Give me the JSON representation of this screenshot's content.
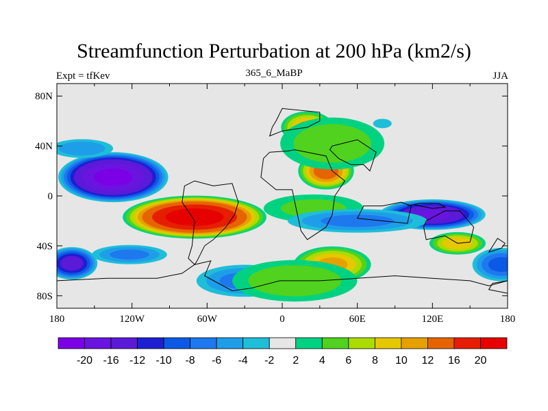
{
  "chart_data": {
    "type": "heatmap",
    "title": "Streamfunction Perturbation at 200 hPa (km2/s)",
    "left_label": "Expt = tfKev",
    "center_label": "365_6_MaBP",
    "right_label": "JJA",
    "xlim": [
      -180,
      180
    ],
    "ylim": [
      -90,
      90
    ],
    "x_ticks": [
      {
        "value": -180,
        "label": "180"
      },
      {
        "value": -120,
        "label": "120W"
      },
      {
        "value": -60,
        "label": "60W"
      },
      {
        "value": 0,
        "label": "0"
      },
      {
        "value": 60,
        "label": "60E"
      },
      {
        "value": 120,
        "label": "120E"
      },
      {
        "value": 180,
        "label": "180"
      }
    ],
    "y_ticks": [
      {
        "value": 80,
        "label": "80N"
      },
      {
        "value": 40,
        "label": "40N"
      },
      {
        "value": 0,
        "label": "0"
      },
      {
        "value": -40,
        "label": "40S"
      },
      {
        "value": -80,
        "label": "80S"
      }
    ],
    "levels": [
      -20,
      -16,
      -12,
      -10,
      -8,
      -6,
      -4,
      -2,
      2,
      4,
      6,
      8,
      10,
      12,
      16,
      20
    ],
    "colors": [
      "#7b00e6",
      "#6a14e0",
      "#5a1ad8",
      "#1e1ed2",
      "#0a5ae6",
      "#1e78ee",
      "#1e9ee8",
      "#1ebed8",
      "#e6e6e6",
      "#00d282",
      "#50d21e",
      "#aadc00",
      "#e6c800",
      "#e6a000",
      "#e66400",
      "#e61e00",
      "#e60000"
    ],
    "centers": [
      {
        "lon": -135,
        "lat": 15,
        "value": -21,
        "rx": 46,
        "ry": 21
      },
      {
        "lon": -70,
        "lat": -17,
        "value": 22,
        "rx": 60,
        "ry": 18
      },
      {
        "lon": -168,
        "lat": -54,
        "value": -13,
        "rx": 22,
        "ry": 14
      },
      {
        "lon": -160,
        "lat": 38,
        "value": -5,
        "rx": 30,
        "ry": 9
      },
      {
        "lon": -122,
        "lat": -47,
        "value": -6,
        "rx": 35,
        "ry": 9
      },
      {
        "lon": -30,
        "lat": -68,
        "value": -6,
        "rx": 45,
        "ry": 15
      },
      {
        "lon": 20,
        "lat": 55,
        "value": 10,
        "rx": 23,
        "ry": 14
      },
      {
        "lon": 35,
        "lat": 20,
        "value": 13,
        "rx": 24,
        "ry": 16
      },
      {
        "lon": 40,
        "lat": 42,
        "value": 5,
        "rx": 50,
        "ry": 25
      },
      {
        "lon": 25,
        "lat": -10,
        "value": 4,
        "rx": 50,
        "ry": 14
      },
      {
        "lon": 40,
        "lat": -55,
        "value": 10,
        "rx": 34,
        "ry": 16
      },
      {
        "lon": 10,
        "lat": -68,
        "value": 5,
        "rx": 60,
        "ry": 20
      },
      {
        "lon": 120,
        "lat": -15,
        "value": -16,
        "rx": 45,
        "ry": 13
      },
      {
        "lon": 60,
        "lat": -20,
        "value": -6,
        "rx": 65,
        "ry": 11
      },
      {
        "lon": 140,
        "lat": -38,
        "value": 9,
        "rx": 25,
        "ry": 10
      },
      {
        "lon": 175,
        "lat": -55,
        "value": -8,
        "rx": 26,
        "ry": 15
      },
      {
        "lon": 80,
        "lat": 58,
        "value": -3,
        "rx": 10,
        "ry": 5
      }
    ],
    "continents": [
      [
        [
          -180,
          -68
        ],
        [
          -140,
          -66
        ],
        [
          -100,
          -66
        ],
        [
          -80,
          -62
        ],
        [
          -70,
          -55
        ],
        [
          -57,
          -52
        ],
        [
          -62,
          -64
        ],
        [
          -40,
          -76
        ],
        [
          -25,
          -74
        ],
        [
          -2,
          -68
        ],
        [
          30,
          -68
        ],
        [
          60,
          -66
        ],
        [
          90,
          -64
        ],
        [
          120,
          -66
        ],
        [
          150,
          -68
        ],
        [
          165,
          -72
        ],
        [
          180,
          -68
        ],
        [
          180,
          -90
        ],
        [
          -180,
          -90
        ]
      ],
      [
        [
          -40,
          10
        ],
        [
          -35,
          -5
        ],
        [
          -38,
          -15
        ],
        [
          -45,
          -25
        ],
        [
          -55,
          -35
        ],
        [
          -62,
          -40
        ],
        [
          -68,
          -52
        ],
        [
          -70,
          -55
        ],
        [
          -75,
          -50
        ],
        [
          -72,
          -40
        ],
        [
          -70,
          -20
        ],
        [
          -80,
          -5
        ],
        [
          -78,
          8
        ],
        [
          -70,
          12
        ],
        [
          -55,
          8
        ]
      ],
      [
        [
          -10,
          35
        ],
        [
          5,
          36
        ],
        [
          10,
          37
        ],
        [
          35,
          32
        ],
        [
          40,
          20
        ],
        [
          50,
          12
        ],
        [
          42,
          0
        ],
        [
          40,
          -15
        ],
        [
          35,
          -25
        ],
        [
          20,
          -35
        ],
        [
          15,
          -28
        ],
        [
          10,
          -5
        ],
        [
          8,
          5
        ],
        [
          -5,
          5
        ],
        [
          -17,
          15
        ],
        [
          -15,
          30
        ]
      ],
      [
        [
          -10,
          48
        ],
        [
          0,
          52
        ],
        [
          20,
          55
        ],
        [
          30,
          60
        ],
        [
          30,
          67
        ],
        [
          0,
          70
        ],
        [
          -5,
          60
        ],
        [
          -8,
          55
        ]
      ],
      [
        [
          40,
          40
        ],
        [
          60,
          45
        ],
        [
          75,
          35
        ],
        [
          70,
          20
        ],
        [
          65,
          25
        ],
        [
          55,
          25
        ],
        [
          45,
          30
        ],
        [
          38,
          37
        ]
      ],
      [
        [
          115,
          -20
        ],
        [
          130,
          -12
        ],
        [
          142,
          -12
        ],
        [
          153,
          -25
        ],
        [
          150,
          -37
        ],
        [
          140,
          -38
        ],
        [
          130,
          -32
        ],
        [
          115,
          -35
        ],
        [
          113,
          -25
        ]
      ],
      [
        [
          100,
          -8
        ],
        [
          110,
          -6
        ],
        [
          125,
          -6
        ],
        [
          130,
          -9
        ],
        [
          120,
          -10
        ],
        [
          105,
          -7
        ]
      ],
      [
        [
          60,
          -18
        ],
        [
          100,
          -22
        ],
        [
          103,
          -8
        ],
        [
          95,
          -5
        ],
        [
          80,
          -8
        ],
        [
          65,
          -8
        ]
      ],
      [
        [
          165,
          -45
        ],
        [
          175,
          -42
        ],
        [
          178,
          -38
        ],
        [
          172,
          -34
        ]
      ],
      [
        [
          165,
          -75
        ],
        [
          180,
          -78
        ],
        [
          180,
          -68
        ],
        [
          168,
          -70
        ]
      ]
    ],
    "grid": false,
    "legend": "bottom colorbar"
  }
}
